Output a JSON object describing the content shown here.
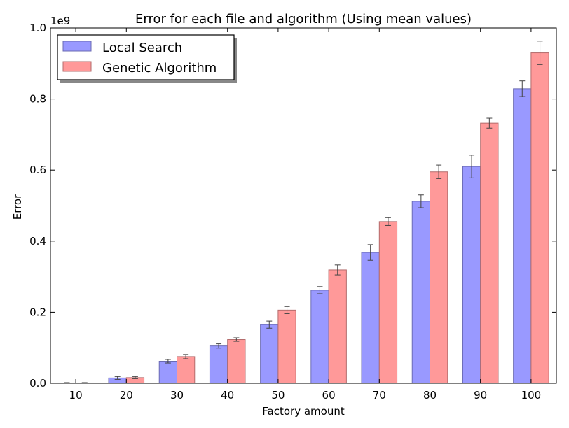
{
  "chart_data": {
    "type": "bar",
    "title": "Error for each file and algorithm (Using mean values)",
    "xlabel": "Factory amount",
    "ylabel": "Error",
    "y_scale_note": "1e9",
    "ylim": [
      0,
      1.0
    ],
    "yticks": [
      "0.0",
      "0.2",
      "0.4",
      "0.6",
      "0.8",
      "1.0"
    ],
    "categories": [
      "10",
      "20",
      "30",
      "40",
      "50",
      "60",
      "70",
      "80",
      "90",
      "100"
    ],
    "legend_position": "top-left",
    "grid": false,
    "series": [
      {
        "name": "Local Search",
        "color": "#9999ff",
        "edge": "#6b6bb3",
        "values": [
          0.001,
          0.015,
          0.062,
          0.105,
          0.165,
          0.262,
          0.368,
          0.512,
          0.61,
          0.829
        ],
        "errors": [
          0.001,
          0.004,
          0.005,
          0.006,
          0.01,
          0.01,
          0.022,
          0.018,
          0.032,
          0.022
        ]
      },
      {
        "name": "Genetic Algorithm",
        "color": "#ff9999",
        "edge": "#b36b6b",
        "values": [
          0.001,
          0.016,
          0.075,
          0.123,
          0.206,
          0.319,
          0.455,
          0.595,
          0.732,
          0.93
        ],
        "errors": [
          0.001,
          0.003,
          0.006,
          0.005,
          0.01,
          0.014,
          0.011,
          0.019,
          0.014,
          0.033
        ]
      }
    ]
  }
}
